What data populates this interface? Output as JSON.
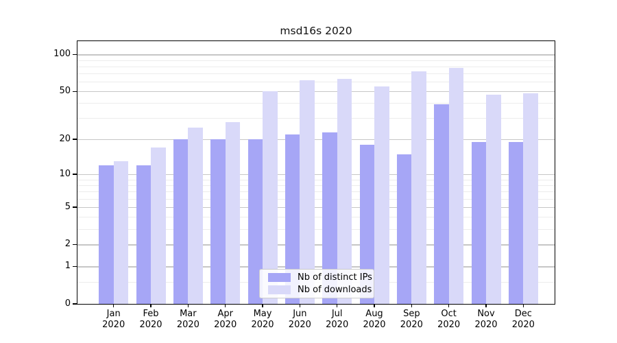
{
  "chart_data": {
    "type": "bar",
    "title": "msd16s 2020",
    "categories": [
      "Jan",
      "Feb",
      "Mar",
      "Apr",
      "May",
      "Jun",
      "Jul",
      "Aug",
      "Sep",
      "Oct",
      "Nov",
      "Dec"
    ],
    "x_sublabel": "2020",
    "series": [
      {
        "name": "Nb of distinct IPs",
        "color": "#a6a6f6",
        "values": [
          12,
          12,
          20,
          20,
          20,
          22,
          23,
          18,
          15,
          39,
          19,
          19
        ]
      },
      {
        "name": "Nb of downloads",
        "color": "#d9d9f9",
        "values": [
          13,
          17,
          25,
          28,
          50,
          62,
          63,
          55,
          73,
          78,
          47,
          48
        ]
      }
    ],
    "y_scale": "symlog",
    "ylim": [
      0,
      130
    ],
    "y_major_ticks": [
      100,
      50,
      20,
      10,
      5,
      2,
      1,
      0
    ],
    "y_minor_ticks": [
      0.5,
      3,
      4,
      6,
      7,
      8,
      9,
      30,
      40,
      60,
      70,
      80,
      90
    ],
    "grid": true,
    "legend_position": "lower center"
  }
}
